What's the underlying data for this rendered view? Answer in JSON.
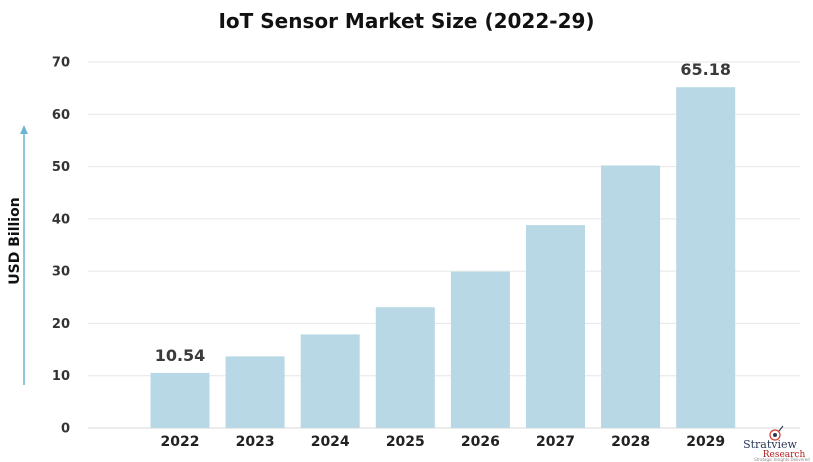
{
  "chart_data": {
    "type": "bar",
    "title": "IoT Sensor Market Size (2022-29)",
    "xlabel": "",
    "ylabel": "USD Billion",
    "categories": [
      "2022",
      "2023",
      "2024",
      "2025",
      "2026",
      "2027",
      "2028",
      "2029"
    ],
    "values": [
      10.54,
      13.7,
      17.9,
      23.1,
      29.9,
      38.8,
      50.2,
      65.18
    ],
    "data_labels": [
      {
        "index": 0,
        "text": "10.54"
      },
      {
        "index": 7,
        "text": "65.18"
      }
    ],
    "ylim": [
      0,
      70
    ],
    "yticks": [
      "0",
      "10",
      "20",
      "30",
      "40",
      "50",
      "60",
      "70"
    ],
    "grid": true,
    "legend": "none",
    "bar_color": "#b7d8e4",
    "arrow_color": "#6fb4cf"
  },
  "logo": {
    "name": "Stratview",
    "sub": "Research",
    "tag": "Strategic Insights Delivered"
  }
}
